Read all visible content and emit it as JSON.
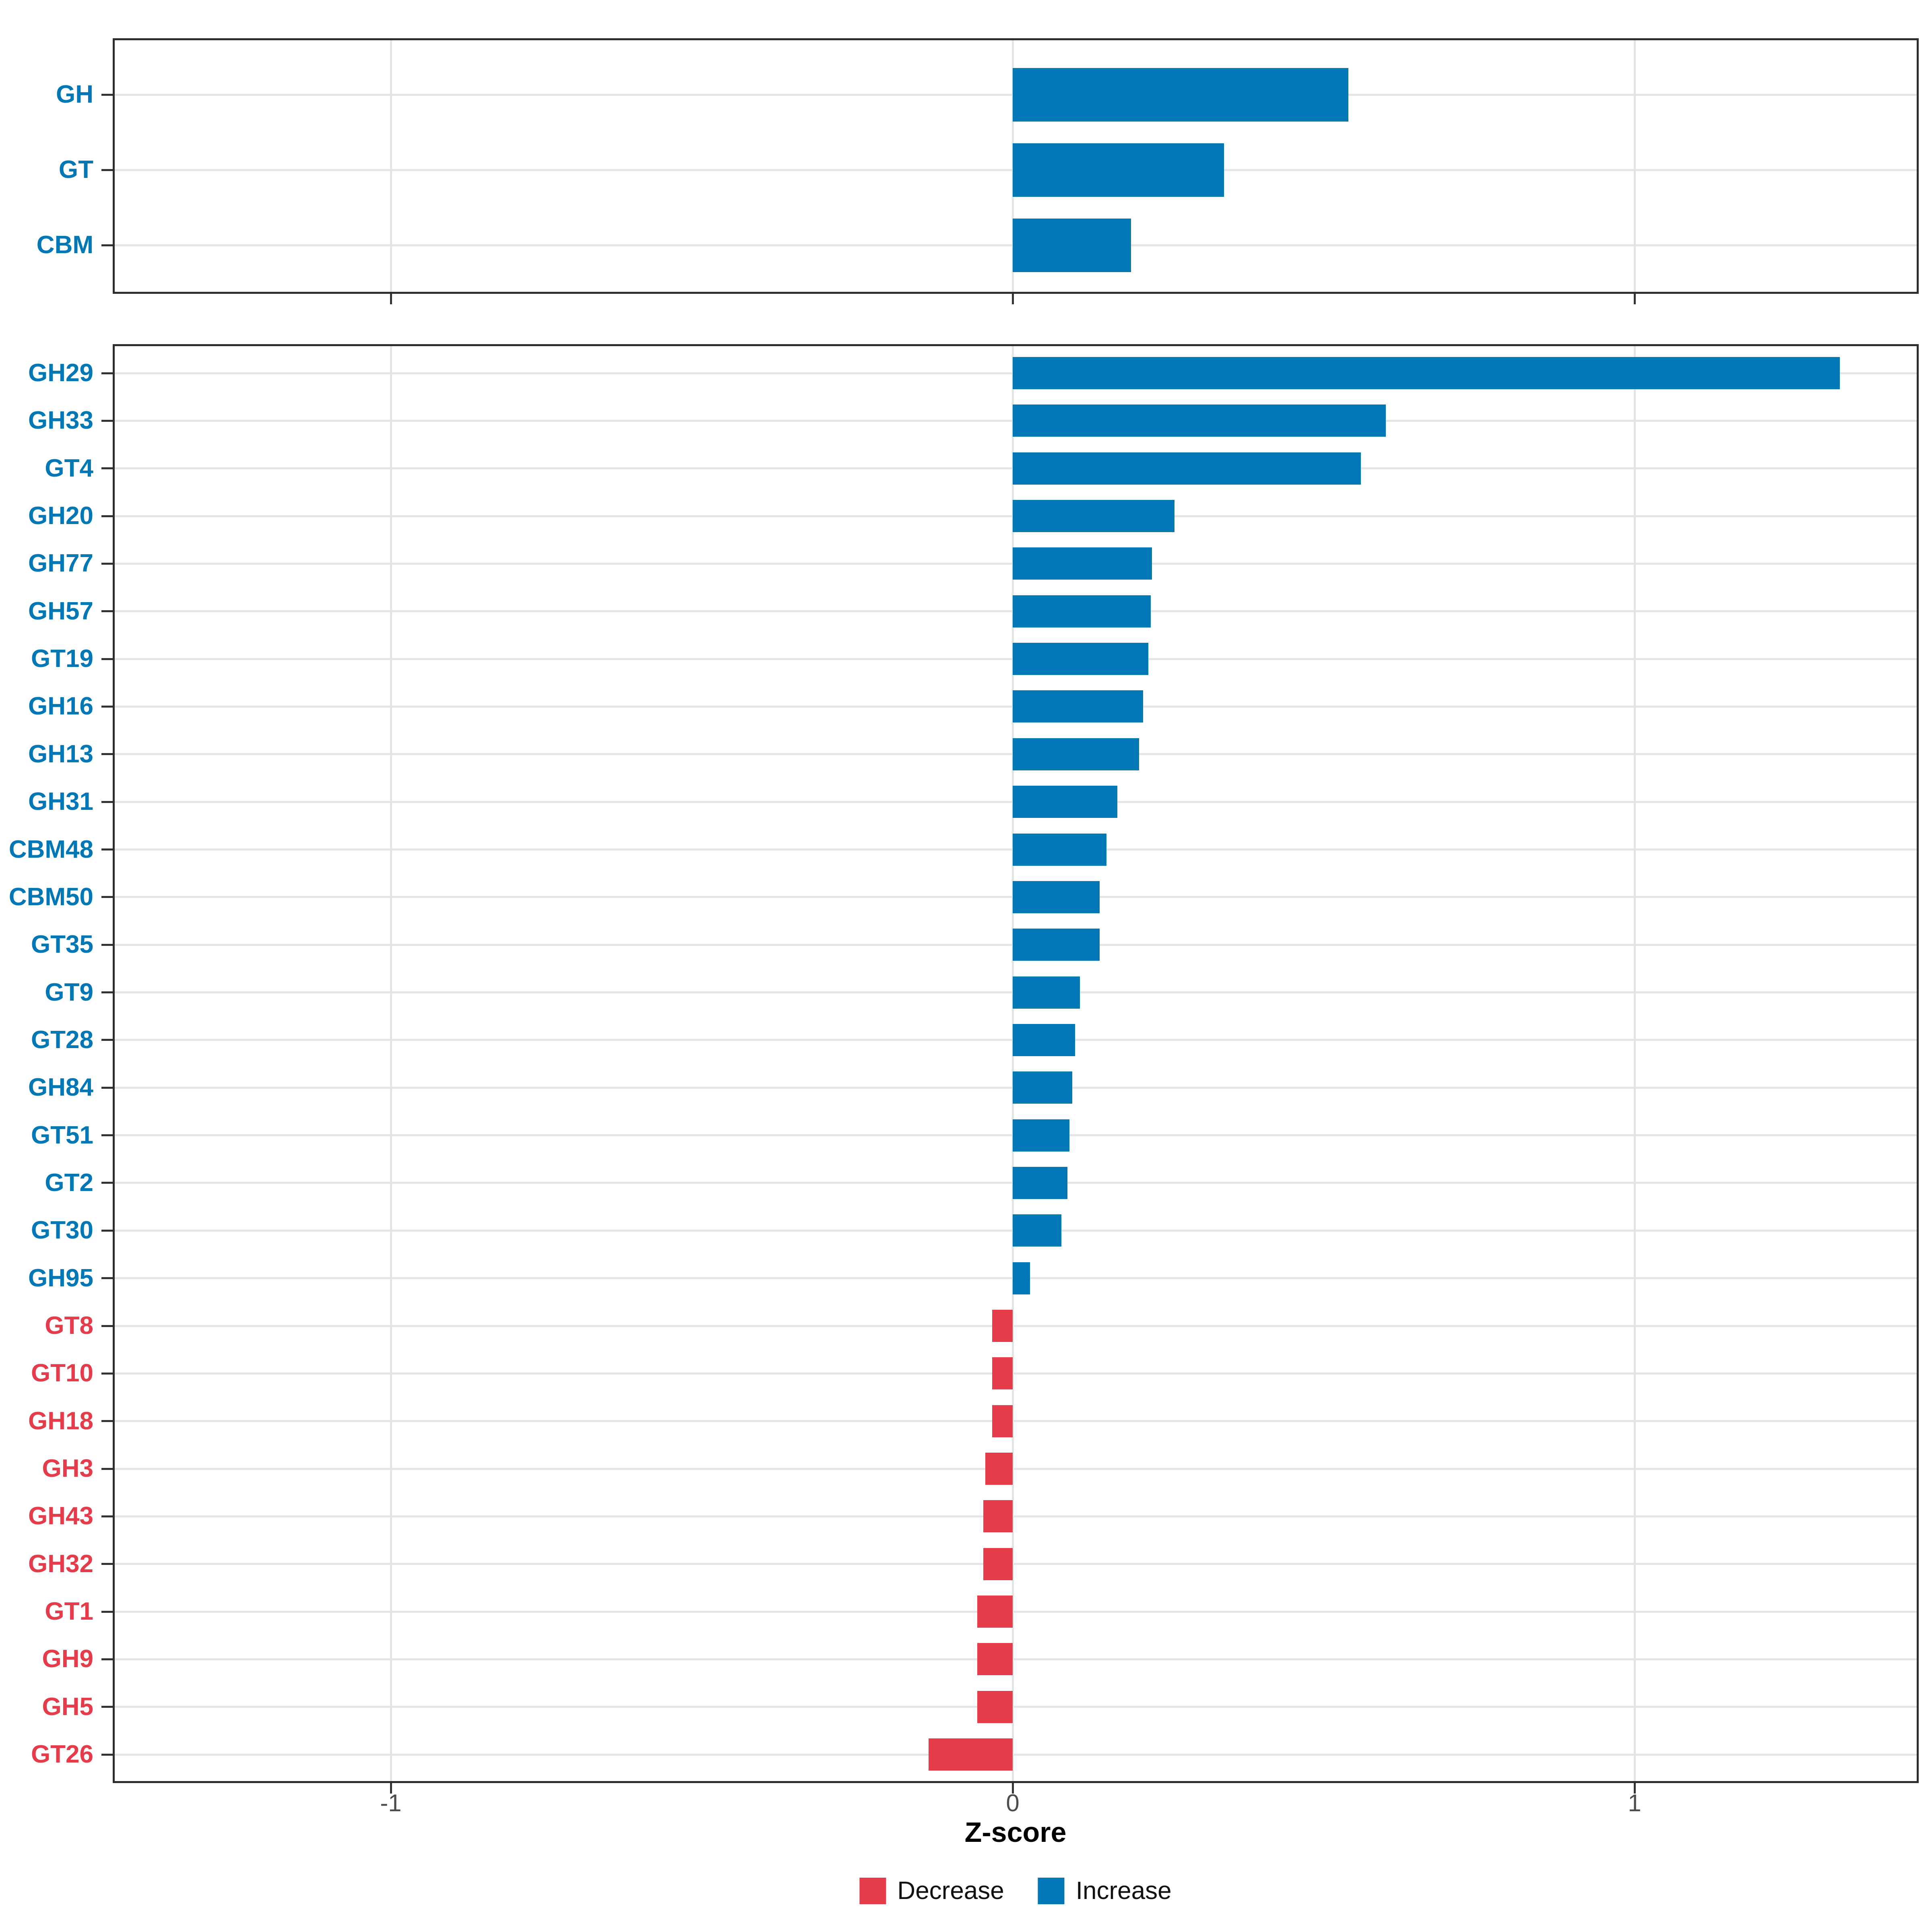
{
  "chart_data": {
    "type": "bar",
    "orientation": "horizontal",
    "title": "",
    "xlabel": "Z-score",
    "ylabel": "",
    "x_ticks": [
      "-1",
      "0",
      "1"
    ],
    "x_tick_values": [
      -1,
      0,
      1
    ],
    "xlim": [
      -1.45,
      1.45
    ],
    "grid": "major-vertical-and-row-lines",
    "legend_position": "bottom",
    "colors": {
      "increase": "#0277b5",
      "decrease": "#e53c4b"
    },
    "legend": {
      "entries": [
        {
          "label": "Decrease",
          "color": "#e53c4b"
        },
        {
          "label": "Increase",
          "color": "#0277b5"
        }
      ]
    },
    "panels": [
      {
        "name": "enzyme-class",
        "categories": [
          "GH",
          "GT",
          "CBM"
        ],
        "values": [
          0.54,
          0.34,
          0.19
        ]
      },
      {
        "name": "enzyme-family",
        "categories": [
          "GH29",
          "GH33",
          "GT4",
          "GH20",
          "GH77",
          "GH57",
          "GT19",
          "GH16",
          "GH13",
          "GH31",
          "CBM48",
          "CBM50",
          "GT35",
          "GT9",
          "GT28",
          "GH84",
          "GT51",
          "GT2",
          "GT30",
          "GH95",
          "GT8",
          "GT10",
          "GH18",
          "GH3",
          "GH43",
          "GH32",
          "GT1",
          "GH9",
          "GH5",
          "GT26"
        ],
        "values": [
          1.33,
          0.6,
          0.56,
          0.26,
          0.224,
          0.222,
          0.218,
          0.21,
          0.203,
          0.168,
          0.151,
          0.14,
          0.14,
          0.108,
          0.1,
          0.096,
          0.091,
          0.088,
          0.078,
          0.028,
          -0.033,
          -0.033,
          -0.033,
          -0.044,
          -0.047,
          -0.047,
          -0.057,
          -0.057,
          -0.057,
          -0.135
        ]
      }
    ]
  }
}
